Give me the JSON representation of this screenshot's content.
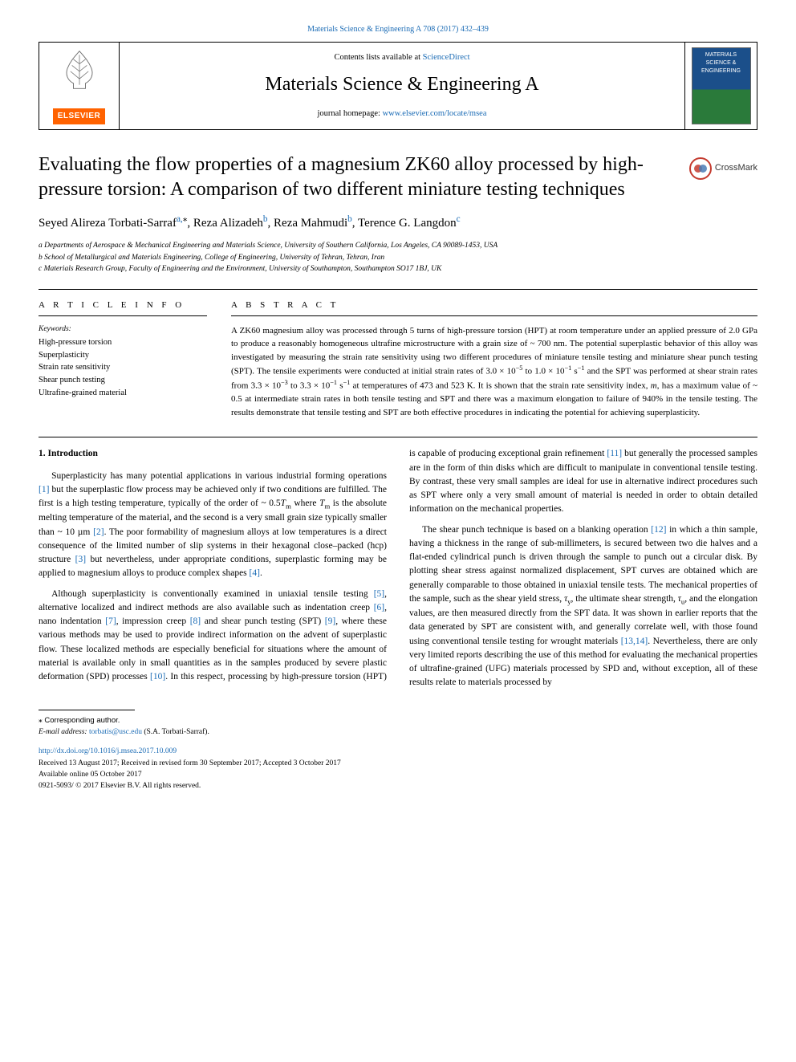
{
  "colors": {
    "link": "#1a6bb5",
    "text": "#000000",
    "elsevier_bg": "#ff6200",
    "crossmark_ring": "#c43b2f",
    "background": "#ffffff"
  },
  "typography": {
    "body_font": "Georgia, 'Times New Roman', serif",
    "title_fontsize_pt": 24,
    "journal_fontsize_pt": 24,
    "authors_fontsize_pt": 15,
    "body_fontsize_pt": 11.5,
    "abstract_fontsize_pt": 11,
    "affil_fontsize_pt": 9.5,
    "footer_fontsize_pt": 9.5
  },
  "header": {
    "citation": "Materials Science & Engineering A 708 (2017) 432–439",
    "contents_prefix": "Contents lists available at ",
    "contents_link": "ScienceDirect",
    "journal_name": "Materials Science & Engineering A",
    "homepage_prefix": "journal homepage: ",
    "homepage_url": "www.elsevier.com/locate/msea",
    "publisher_logo_text": "ELSEVIER",
    "cover_text": "MATERIALS SCIENCE & ENGINEERING"
  },
  "crossmark": {
    "label": "CrossMark"
  },
  "article": {
    "title": "Evaluating the flow properties of a magnesium ZK60 alloy processed by high-pressure torsion: A comparison of two different miniature testing techniques",
    "authors_html": "Seyed Alireza Torbati-Sarraf<a href='#'><span class='sup'>a,</span></a><span class='corr-symbol sup'>⁎</span>, Reza Alizadeh<a href='#'><span class='sup'>b</span></a>, Reza Mahmudi<a href='#'><span class='sup'>b</span></a>, Terence G. Langdon<a href='#'><span class='sup'>c</span></a>",
    "affiliations": [
      "a Departments of Aerospace & Mechanical Engineering and Materials Science, University of Southern California, Los Angeles, CA 90089-1453, USA",
      "b School of Metallurgical and Materials Engineering, College of Engineering, University of Tehran, Tehran, Iran",
      "c Materials Research Group, Faculty of Engineering and the Environment, University of Southampton, Southampton SO17 1BJ, UK"
    ]
  },
  "info": {
    "label": "A R T I C L E  I N F O",
    "keywords_head": "Keywords:",
    "keywords": [
      "High-pressure torsion",
      "Superplasticity",
      "Strain rate sensitivity",
      "Shear punch testing",
      "Ultrafine-grained material"
    ]
  },
  "abstract": {
    "label": "A B S T R A C T",
    "text_html": "A ZK60 magnesium alloy was processed through 5 turns of high-pressure torsion (HPT) at room temperature under an applied pressure of 2.0 GPa to produce a reasonably homogeneous ultrafine microstructure with a grain size of ~ 700 nm. The potential superplastic behavior of this alloy was investigated by measuring the strain rate sensitivity using two different procedures of miniature tensile testing and miniature shear punch testing (SPT). The tensile experiments were conducted at initial strain rates of 3.0 × 10<span class='sup'>−5</span> to 1.0 × 10<span class='sup'>−1</span> s<span class='sup'>−1</span> and the SPT was performed at shear strain rates from 3.3 × 10<span class='sup'>−3</span> to 3.3 × 10<span class='sup'>−1</span> s<span class='sup'>−1</span> at temperatures of 473 and 523 K. It is shown that the strain rate sensitivity index, <span class='ital'>m</span>, has a maximum value of ~ 0.5 at intermediate strain rates in both tensile testing and SPT and there was a maximum elongation to failure of 940% in the tensile testing. The results demonstrate that tensile testing and SPT are both effective procedures in indicating the potential for achieving superplasticity."
  },
  "body": {
    "section_heading": "1. Introduction",
    "paragraphs_html": [
      "Superplasticity has many potential applications in various industrial forming operations <a href='#'>[1]</a> but the superplastic flow process may be achieved only if two conditions are fulfilled. The first is a high testing temperature, typically of the order of ~ 0.5<span class='ital'>T</span><span class='sub'>m</span> where <span class='ital'>T</span><span class='sub'>m</span> is the absolute melting temperature of the material, and the second is a very small grain size typically smaller than ~ 10 µm <a href='#'>[2]</a>. The poor formability of magnesium alloys at low temperatures is a direct consequence of the limited number of slip systems in their hexagonal close–packed (hcp) structure <a href='#'>[3]</a> but nevertheless, under appropriate conditions, superplastic forming may be applied to magnesium alloys to produce complex shapes <a href='#'>[4]</a>.",
      "Although superplasticity is conventionally examined in uniaxial tensile testing <a href='#'>[5]</a>, alternative localized and indirect methods are also available such as indentation creep <a href='#'>[6]</a>, nano indentation <a href='#'>[7]</a>, impression creep <a href='#'>[8]</a> and shear punch testing (SPT) <a href='#'>[9]</a>, where these various methods may be used to provide indirect information on the advent of superplastic flow. These localized methods are especially beneficial for situations where the amount of material is available only in small quantities as in the samples produced by severe plastic deformation (SPD) processes <a href='#'>[10]</a>. In this respect, processing by high-pressure torsion (HPT) is capable of producing exceptional grain refinement <a href='#'>[11]</a> but generally the processed samples are in the form of thin disks which are difficult to manipulate in conventional tensile testing. By contrast, these very small samples are ideal for use in alternative indirect procedures such as SPT where only a very small amount of material is needed in order to obtain detailed information on the mechanical properties.",
      "The shear punch technique is based on a blanking operation <a href='#'>[12]</a> in which a thin sample, having a thickness in the range of sub-millimeters, is secured between two die halves and a flat-ended cylindrical punch is driven through the sample to punch out a circular disk. By plotting shear stress against normalized displacement, SPT curves are obtained which are generally comparable to those obtained in uniaxial tensile tests. The mechanical properties of the sample, such as the shear yield stress, <span class='ital'>τ</span><span class='sub'>y</span>, the ultimate shear strength, <span class='ital'>τ</span><span class='sub'>u</span>, and the elongation values, are then measured directly from the SPT data. It was shown in earlier reports that the data generated by SPT are consistent with, and generally correlate well, with those found using conventional tensile testing for wrought materials <a href='#'>[13,14]</a>. Nevertheless, there are only very limited reports describing the use of this method for evaluating the mechanical properties of ultrafine-grained (UFG) materials processed by SPD and, without exception, all of these results relate to materials processed by"
    ]
  },
  "footer": {
    "corr_label": "⁎ Corresponding author.",
    "email_label": "E-mail address: ",
    "email": "torbatis@usc.edu",
    "email_suffix": " (S.A. Torbati-Sarraf).",
    "doi": "http://dx.doi.org/10.1016/j.msea.2017.10.009",
    "dates": "Received 13 August 2017; Received in revised form 30 September 2017; Accepted 3 October 2017",
    "online": "Available online 05 October 2017",
    "copyright": "0921-5093/ © 2017 Elsevier B.V. All rights reserved."
  }
}
